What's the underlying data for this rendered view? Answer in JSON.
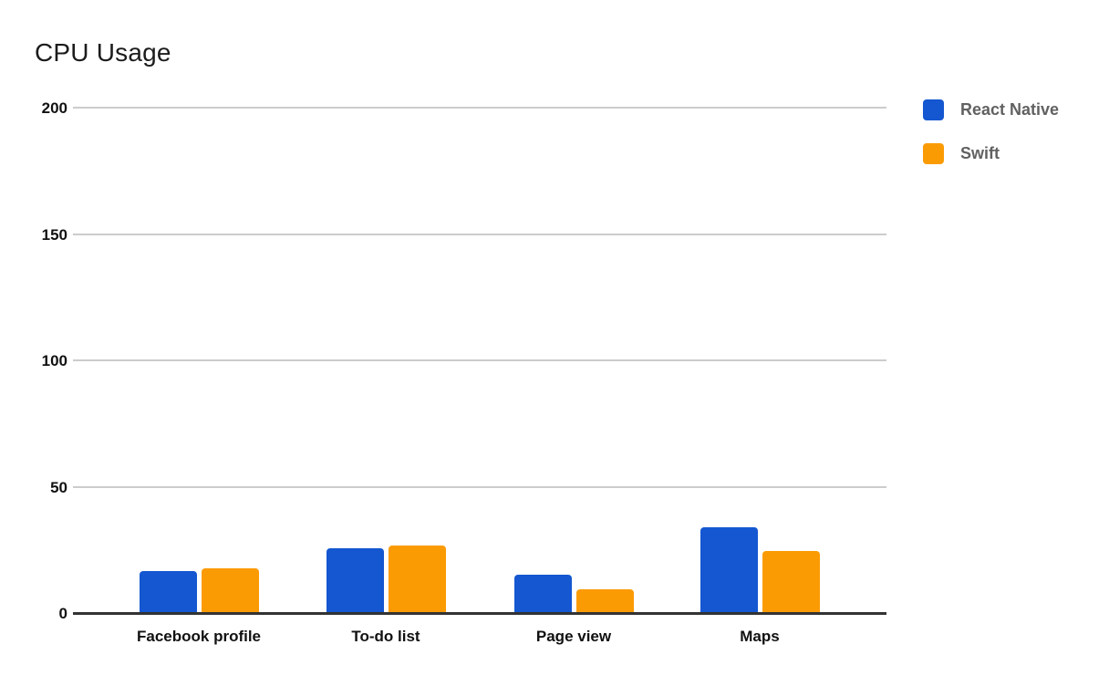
{
  "title": "CPU Usage",
  "colors": {
    "react_native": "#1457d0",
    "swift": "#fb9b04",
    "gridline": "#cccccc",
    "axis": "#333333",
    "tick_label": "#111111",
    "legend_text": "#616161",
    "background": "#ffffff"
  },
  "chart_data": {
    "type": "bar",
    "title": "CPU Usage",
    "categories": [
      "Facebook profile",
      "To-do list",
      "Page view",
      "Maps"
    ],
    "series": [
      {
        "name": "React Native",
        "color": "#1457d0",
        "values": [
          16.5,
          25.8,
          15.1,
          34.0
        ]
      },
      {
        "name": "Swift",
        "color": "#fb9b04",
        "values": [
          17.7,
          26.8,
          9.3,
          24.4
        ]
      }
    ],
    "xlabel": "",
    "ylabel": "",
    "ylim": [
      0,
      200
    ],
    "yticks": [
      0,
      50,
      100,
      150,
      200
    ],
    "grid": true,
    "legend_position": "top-right"
  }
}
